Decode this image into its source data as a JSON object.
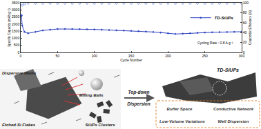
{
  "chart_data": {
    "type": "line",
    "xlabel": "Cycle Number",
    "ylabel": "Specific Capacity (mAh g⁻¹)",
    "y2label": "Coulombic Efficiency (%)",
    "x": [
      1,
      2,
      5,
      10,
      20,
      30,
      40,
      50,
      60,
      70,
      80,
      90,
      100,
      110,
      120,
      130,
      140,
      150,
      160,
      170,
      180,
      190,
      200,
      210,
      220,
      230,
      240,
      250,
      260,
      270,
      280,
      290,
      300
    ],
    "series": [
      {
        "name": "TD-SiUPs",
        "color": "#2a3fbf",
        "marker": "circle",
        "line_style": "solid",
        "values": [
          2600,
          1900,
          1450,
          1350,
          1450,
          1550,
          1600,
          1650,
          1650,
          1650,
          1640,
          1630,
          1620,
          1600,
          1580,
          1560,
          1540,
          1520,
          1500,
          1470,
          1440,
          1400,
          1350,
          1300,
          1320,
          1350,
          1380,
          1400,
          1420,
          1430,
          1440,
          1450,
          1460
        ]
      },
      {
        "axis": "y2",
        "type": "scatter",
        "color": "#4a6cf0",
        "marker": "circle-open",
        "values": [
          75,
          95,
          98,
          99,
          99,
          99,
          99,
          99,
          99,
          99,
          99,
          99,
          99,
          99,
          99,
          99,
          99,
          99,
          99,
          99,
          99,
          99,
          99,
          99,
          99,
          99,
          99,
          99,
          99,
          99,
          99,
          99,
          99
        ]
      }
    ],
    "xlim": [
      0,
      300
    ],
    "xticks": [
      0,
      50,
      100,
      150,
      200,
      250,
      300
    ],
    "ylim": [
      0,
      3500
    ],
    "yticks": [
      0,
      500,
      1000,
      1500,
      2000,
      2500,
      3000,
      3500
    ],
    "y2lim": [
      0,
      100
    ],
    "y2ticks": [
      0,
      20,
      40,
      60,
      80,
      100
    ],
    "legend": "top right",
    "grid": false,
    "annotations": [
      "Cycling Rate : 0.8 A g⁻¹"
    ]
  },
  "diagram": {
    "milling": {
      "dispersive_media": "Dispersive Media",
      "milling_balls": "Milling Balls",
      "etched_flakes": "Etched-Si Flakes",
      "clusters": "SiUPs Clusters"
    },
    "process": [
      "Top-down",
      "Dispersion"
    ],
    "product": {
      "title": "TD-SiUPs",
      "features": [
        "Buffer Space",
        "Conductive Network",
        "Low-Volume Variations",
        "Well Dispersion"
      ]
    }
  }
}
